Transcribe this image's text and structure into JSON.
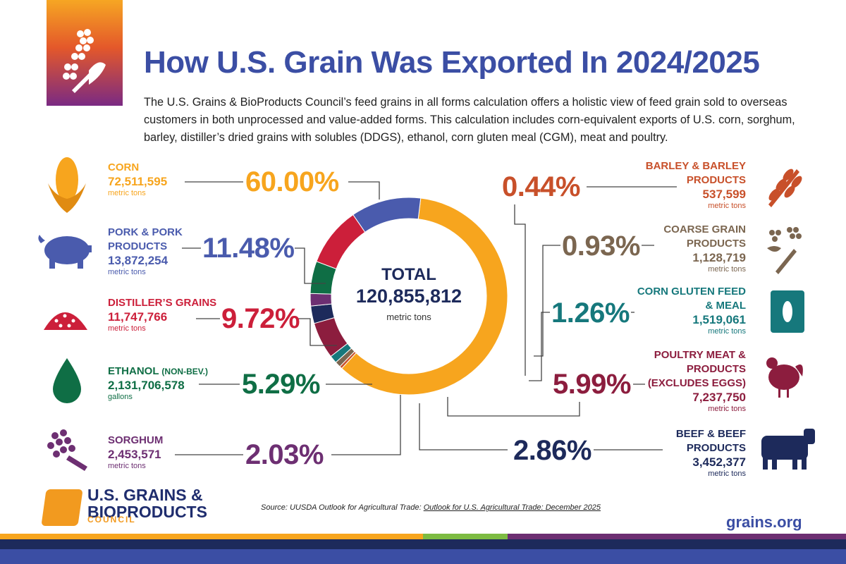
{
  "title": "How U.S. Grain Was Exported In 2024/2025",
  "intro": "The U.S. Grains & BioProducts Council’s feed grains in all forms calculation offers a holistic view of feed grain sold to overseas customers in both unprocessed and value-added forms. This calculation includes corn-equivalent exports of U.S. corn, sorghum, barley, distiller’s dried grains with solubles (DDGS), ethanol, corn gluten meal (CGM), meat and poultry.",
  "center": {
    "label": "TOTAL",
    "value": "120,855,812",
    "unit": "metric tons"
  },
  "source_prefix": "Source: UUSDA Outlook for Agricultural Trade: ",
  "source_link": "Outlook for U.S. Agricultural Trade: December 2025",
  "logo": {
    "line1": "U.S. GRAINS &",
    "line2": "BIOPRODUCTS",
    "line3": "COUNCIL"
  },
  "website": "grains.org",
  "chart_data": {
    "type": "pie",
    "title": "How U.S. Grain Was Exported In 2024/2025",
    "total": 120855812,
    "series": [
      {
        "name": "CORN",
        "value": 60.0,
        "pct_label": "60.00%",
        "amount": "72,511,595",
        "unit": "metric tons",
        "color": "#f7a51e"
      },
      {
        "name": "BARLEY & BARLEY PRODUCTS",
        "value": 0.44,
        "pct_label": "0.44%",
        "amount": "537,599",
        "unit": "metric tons",
        "color": "#c8502a"
      },
      {
        "name": "COARSE GRAIN PRODUCTS",
        "value": 0.93,
        "pct_label": "0.93%",
        "amount": "1,128,719",
        "unit": "metric tons",
        "color": "#7b6650"
      },
      {
        "name": "CORN GLUTEN FEED & MEAL",
        "value": 1.26,
        "pct_label": "1.26%",
        "amount": "1,519,061",
        "unit": "metric tons",
        "color": "#16787c"
      },
      {
        "name": "POULTRY MEAT & PRODUCTS (EXCLUDES EGGS)",
        "value": 5.99,
        "pct_label": "5.99%",
        "amount": "7,237,750",
        "unit": "metric tons",
        "color": "#8c1d3e"
      },
      {
        "name": "BEEF & BEEF PRODUCTS",
        "value": 2.86,
        "pct_label": "2.86%",
        "amount": "3,452,377",
        "unit": "metric tons",
        "color": "#1d2a5b"
      },
      {
        "name": "SORGHUM",
        "value": 2.03,
        "pct_label": "2.03%",
        "amount": "2,453,571",
        "unit": "metric tons",
        "color": "#6d2f72"
      },
      {
        "name": "ETHANOL (NON-BEV.)",
        "value": 5.29,
        "pct_label": "5.29%",
        "amount": "2,131,706,578",
        "unit": "gallons",
        "color": "#0f6e45"
      },
      {
        "name": "DISTILLER’S GRAINS",
        "value": 9.72,
        "pct_label": "9.72%",
        "amount": "11,747,766",
        "unit": "metric tons",
        "color": "#cc1f3a"
      },
      {
        "name": "PORK & PORK PRODUCTS",
        "value": 11.48,
        "pct_label": "11.48%",
        "amount": "13,872,254",
        "unit": "metric tons",
        "color": "#4a5bad"
      }
    ]
  },
  "labels": {
    "corn": {
      "name": "CORN",
      "amount": "72,511,595",
      "unit": "metric tons",
      "pct": "60.00%"
    },
    "pork": {
      "name1": "PORK & PORK",
      "name2": "PRODUCTS",
      "amount": "13,872,254",
      "unit": "metric tons",
      "pct": "11.48%"
    },
    "ddg": {
      "name": "DISTILLER’S GRAINS",
      "amount": "11,747,766",
      "unit": "metric tons",
      "pct": "9.72%"
    },
    "ethanol": {
      "name": "ETHANOL",
      "name_small": "(NON-BEV.)",
      "amount": "2,131,706,578",
      "unit": "gallons",
      "pct": "5.29%"
    },
    "sorghum": {
      "name": "SORGHUM",
      "amount": "2,453,571",
      "unit": "metric tons",
      "pct": "2.03%"
    },
    "barley": {
      "name1": "BARLEY & BARLEY",
      "name2": "PRODUCTS",
      "amount": "537,599",
      "unit": "metric tons",
      "pct": "0.44%"
    },
    "coarse": {
      "name1": "COARSE GRAIN",
      "name2": "PRODUCTS",
      "amount": "1,128,719",
      "unit": "metric tons",
      "pct": "0.93%"
    },
    "gluten": {
      "name1": "CORN GLUTEN FEED",
      "name2": "& MEAL",
      "amount": "1,519,061",
      "unit": "metric tons",
      "pct": "1.26%"
    },
    "poultry": {
      "name1": "POULTRY MEAT &",
      "name2": "PRODUCTS",
      "name3": "(EXCLUDES EGGS)",
      "amount": "7,237,750",
      "unit": "metric tons",
      "pct": "5.99%"
    },
    "beef": {
      "name1": "BEEF & BEEF",
      "name2": "PRODUCTS",
      "amount": "3,452,377",
      "unit": "metric tons",
      "pct": "2.86%"
    }
  },
  "icons": [
    "grain-logo-icon",
    "corn-icon",
    "pig-icon",
    "grain-pile-icon",
    "droplet-icon",
    "sorghum-icon",
    "wheat-icon",
    "coarse-grain-icon",
    "feed-bag-icon",
    "chicken-icon",
    "cow-icon",
    "council-logo-icon"
  ]
}
